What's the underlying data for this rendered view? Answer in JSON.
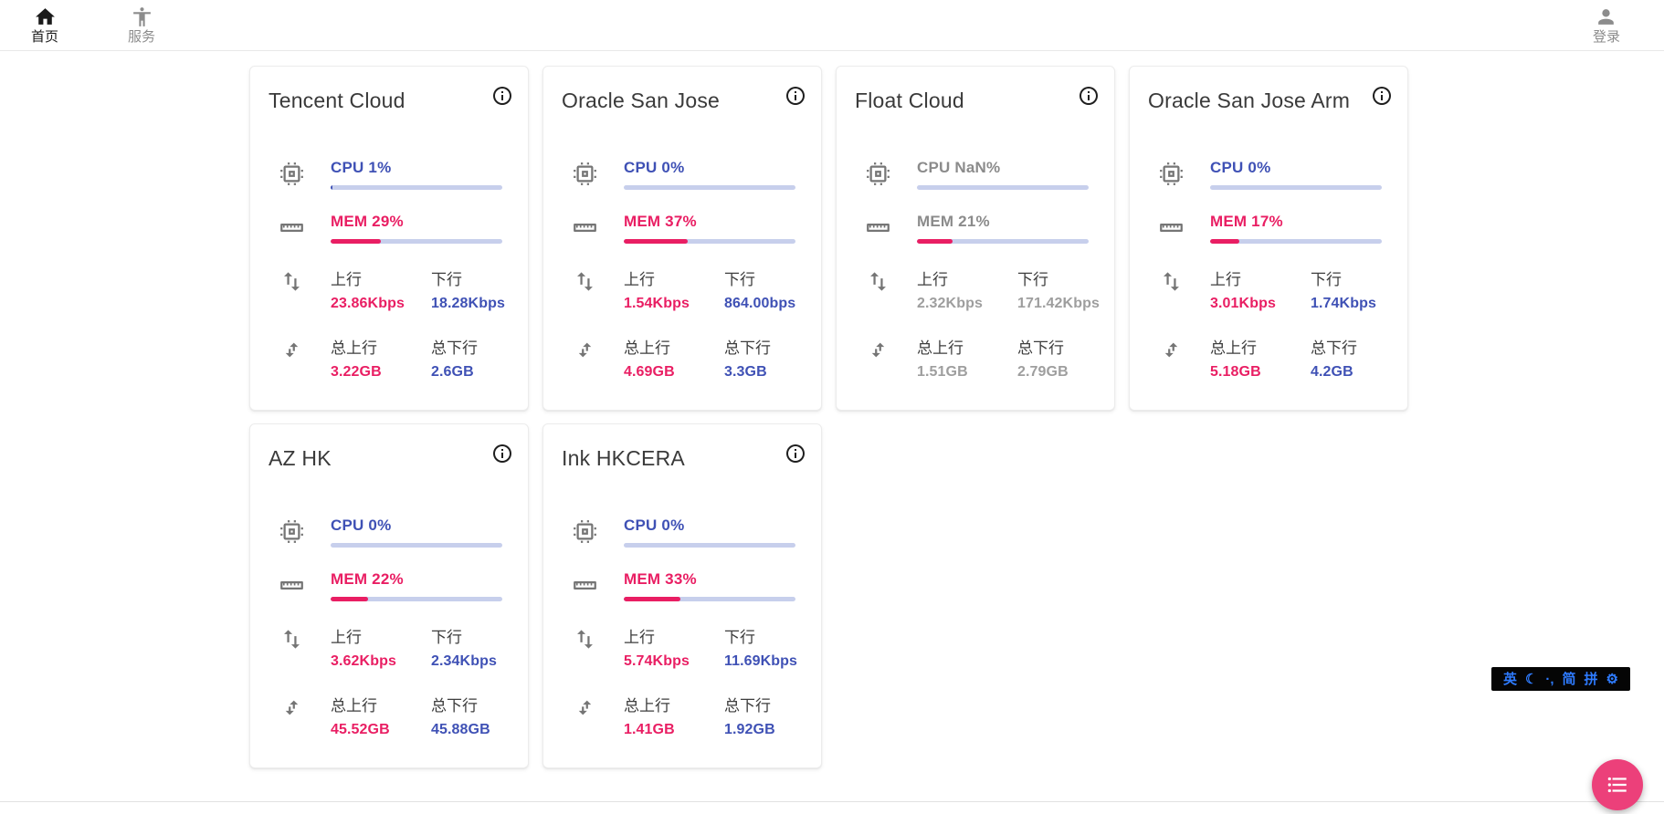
{
  "colors": {
    "accent_indigo": "#3F51B5",
    "accent_pink": "#E91E63",
    "bar_track": "#C7CFEC",
    "fab_pink": "#EC407A",
    "offline_gray": "#9E9E9E",
    "ime_blue": "#2E7BFF",
    "ime_bg": "#050505"
  },
  "nav": {
    "home": {
      "label": "首页"
    },
    "services": {
      "label": "服务"
    },
    "login": {
      "label": "登录"
    }
  },
  "card_labels": {
    "up": "上行",
    "down": "下行",
    "total_up": "总上行",
    "total_down": "总下行"
  },
  "servers": [
    {
      "name": "Tencent Cloud",
      "cpu_text": "CPU 1%",
      "cpu_pct": 1,
      "mem_text": "MEM 29%",
      "mem_pct": 29,
      "up": "23.86Kbps",
      "down": "18.28Kbps",
      "total_up": "3.22GB",
      "total_down": "2.6GB",
      "online": true
    },
    {
      "name": "Oracle San Jose",
      "cpu_text": "CPU 0%",
      "cpu_pct": 0,
      "mem_text": "MEM 37%",
      "mem_pct": 37,
      "up": "1.54Kbps",
      "down": "864.00bps",
      "total_up": "4.69GB",
      "total_down": "3.3GB",
      "online": true
    },
    {
      "name": "Float Cloud",
      "cpu_text": "CPU NaN%",
      "cpu_pct": 0,
      "mem_text": "MEM 21%",
      "mem_pct": 21,
      "up": "2.32Kbps",
      "down": "171.42Kbps",
      "total_up": "1.51GB",
      "total_down": "2.79GB",
      "online": false
    },
    {
      "name": "Oracle San Jose Arm",
      "cpu_text": "CPU 0%",
      "cpu_pct": 0,
      "mem_text": "MEM 17%",
      "mem_pct": 17,
      "up": "3.01Kbps",
      "down": "1.74Kbps",
      "total_up": "5.18GB",
      "total_down": "4.2GB",
      "online": true
    },
    {
      "name": "AZ HK",
      "cpu_text": "CPU 0%",
      "cpu_pct": 0,
      "mem_text": "MEM 22%",
      "mem_pct": 22,
      "up": "3.62Kbps",
      "down": "2.34Kbps",
      "total_up": "45.52GB",
      "total_down": "45.88GB",
      "online": true
    },
    {
      "name": "Ink HKCERA",
      "cpu_text": "CPU 0%",
      "cpu_pct": 0,
      "mem_text": "MEM 33%",
      "mem_pct": 33,
      "up": "5.74Kbps",
      "down": "11.69Kbps",
      "total_up": "1.41GB",
      "total_down": "1.92GB",
      "online": true
    }
  ],
  "ime_bar": {
    "items": [
      "英",
      "☾",
      "·,",
      "简",
      "拼",
      "⚙"
    ]
  }
}
